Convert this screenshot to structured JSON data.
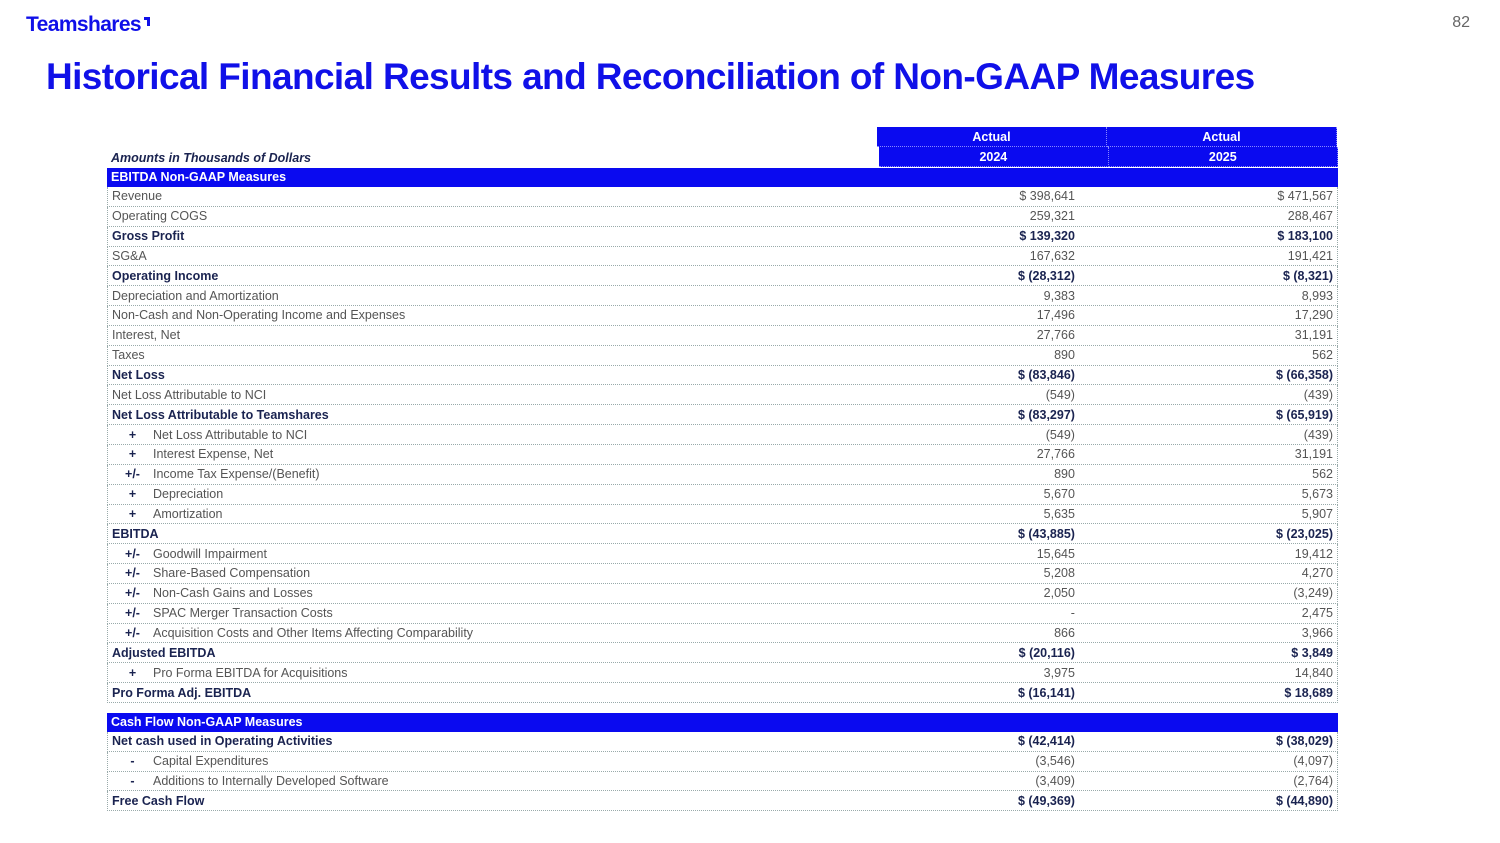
{
  "header": {
    "logo": "Teamshares",
    "page_number": "82",
    "title": "Historical Financial Results and Reconciliation of Non-GAAP Measures"
  },
  "table": {
    "units_label": "Amounts in Thousands of Dollars",
    "columns": [
      {
        "top": "Actual",
        "year": "2024"
      },
      {
        "top": "Actual",
        "year": "2025"
      }
    ],
    "sections": [
      {
        "title": "EBITDA Non-GAAP Measures",
        "rows": [
          {
            "sign": "",
            "label": "Revenue",
            "v2024": "$ 398,641",
            "v2025": "$ 471,567",
            "bold": false
          },
          {
            "sign": "",
            "label": "Operating COGS",
            "v2024": "259,321",
            "v2025": "288,467",
            "bold": false
          },
          {
            "sign": "",
            "label": "Gross Profit",
            "v2024": "$ 139,320",
            "v2025": "$ 183,100",
            "bold": true
          },
          {
            "sign": "",
            "label": "SG&A",
            "v2024": "167,632",
            "v2025": "191,421",
            "bold": false
          },
          {
            "sign": "",
            "label": "Operating Income",
            "v2024": "$ (28,312)",
            "v2025": "$ (8,321)",
            "bold": true
          },
          {
            "sign": "",
            "label": "Depreciation and Amortization",
            "v2024": "9,383",
            "v2025": "8,993",
            "bold": false
          },
          {
            "sign": "",
            "label": "Non-Cash and Non-Operating Income and Expenses",
            "v2024": "17,496",
            "v2025": "17,290",
            "bold": false
          },
          {
            "sign": "",
            "label": "Interest, Net",
            "v2024": "27,766",
            "v2025": "31,191",
            "bold": false
          },
          {
            "sign": "",
            "label": "Taxes",
            "v2024": "890",
            "v2025": "562",
            "bold": false
          },
          {
            "sign": "",
            "label": "Net Loss",
            "v2024": "$ (83,846)",
            "v2025": "$ (66,358)",
            "bold": true
          },
          {
            "sign": "",
            "label": "Net Loss Attributable to NCI",
            "v2024": "(549)",
            "v2025": "(439)",
            "bold": false
          },
          {
            "sign": "",
            "label": "Net Loss Attributable to Teamshares",
            "v2024": "$ (83,297)",
            "v2025": "$ (65,919)",
            "bold": true
          },
          {
            "sign": "+",
            "label": "Net Loss Attributable to NCI",
            "v2024": "(549)",
            "v2025": "(439)",
            "bold": false
          },
          {
            "sign": "+",
            "label": "Interest Expense, Net",
            "v2024": "27,766",
            "v2025": "31,191",
            "bold": false
          },
          {
            "sign": "+/-",
            "label": "Income Tax Expense/(Benefit)",
            "v2024": "890",
            "v2025": "562",
            "bold": false
          },
          {
            "sign": "+",
            "label": "Depreciation",
            "v2024": "5,670",
            "v2025": "5,673",
            "bold": false
          },
          {
            "sign": "+",
            "label": "Amortization",
            "v2024": "5,635",
            "v2025": "5,907",
            "bold": false
          },
          {
            "sign": "",
            "label": "EBITDA",
            "v2024": "$ (43,885)",
            "v2025": "$ (23,025)",
            "bold": true
          },
          {
            "sign": "+/-",
            "label": "Goodwill Impairment",
            "v2024": "15,645",
            "v2025": "19,412",
            "bold": false
          },
          {
            "sign": "+/-",
            "label": "Share-Based Compensation",
            "v2024": "5,208",
            "v2025": "4,270",
            "bold": false
          },
          {
            "sign": "+/-",
            "label": "Non-Cash Gains and Losses",
            "v2024": "2,050",
            "v2025": "(3,249)",
            "bold": false
          },
          {
            "sign": "+/-",
            "label": "SPAC Merger Transaction Costs",
            "v2024": "-",
            "v2025": "2,475",
            "bold": false
          },
          {
            "sign": "+/-",
            "label": "Acquisition Costs and Other Items Affecting Comparability",
            "v2024": "866",
            "v2025": "3,966",
            "bold": false
          },
          {
            "sign": "",
            "label": "Adjusted EBITDA",
            "v2024": "$ (20,116)",
            "v2025": "$ 3,849",
            "bold": true
          },
          {
            "sign": "+",
            "label": "Pro Forma EBITDA for Acquisitions",
            "v2024": "3,975",
            "v2025": "14,840",
            "bold": false
          },
          {
            "sign": "",
            "label": "Pro Forma Adj. EBITDA",
            "v2024": "$ (16,141)",
            "v2025": "$ 18,689",
            "bold": true
          }
        ]
      },
      {
        "title": "Cash Flow Non-GAAP Measures",
        "rows": [
          {
            "sign": "",
            "label": "Net cash used in Operating Activities",
            "v2024": "$ (42,414)",
            "v2025": "$ (38,029)",
            "bold": true
          },
          {
            "sign": "-",
            "label": "Capital Expenditures",
            "v2024": "(3,546)",
            "v2025": "(4,097)",
            "bold": false
          },
          {
            "sign": "-",
            "label": "Additions to Internally Developed Software",
            "v2024": "(3,409)",
            "v2025": "(2,764)",
            "bold": false
          },
          {
            "sign": "",
            "label": "Free Cash Flow",
            "v2024": "$ (49,369)",
            "v2025": "$ (44,890)",
            "bold": true
          }
        ]
      }
    ]
  }
}
